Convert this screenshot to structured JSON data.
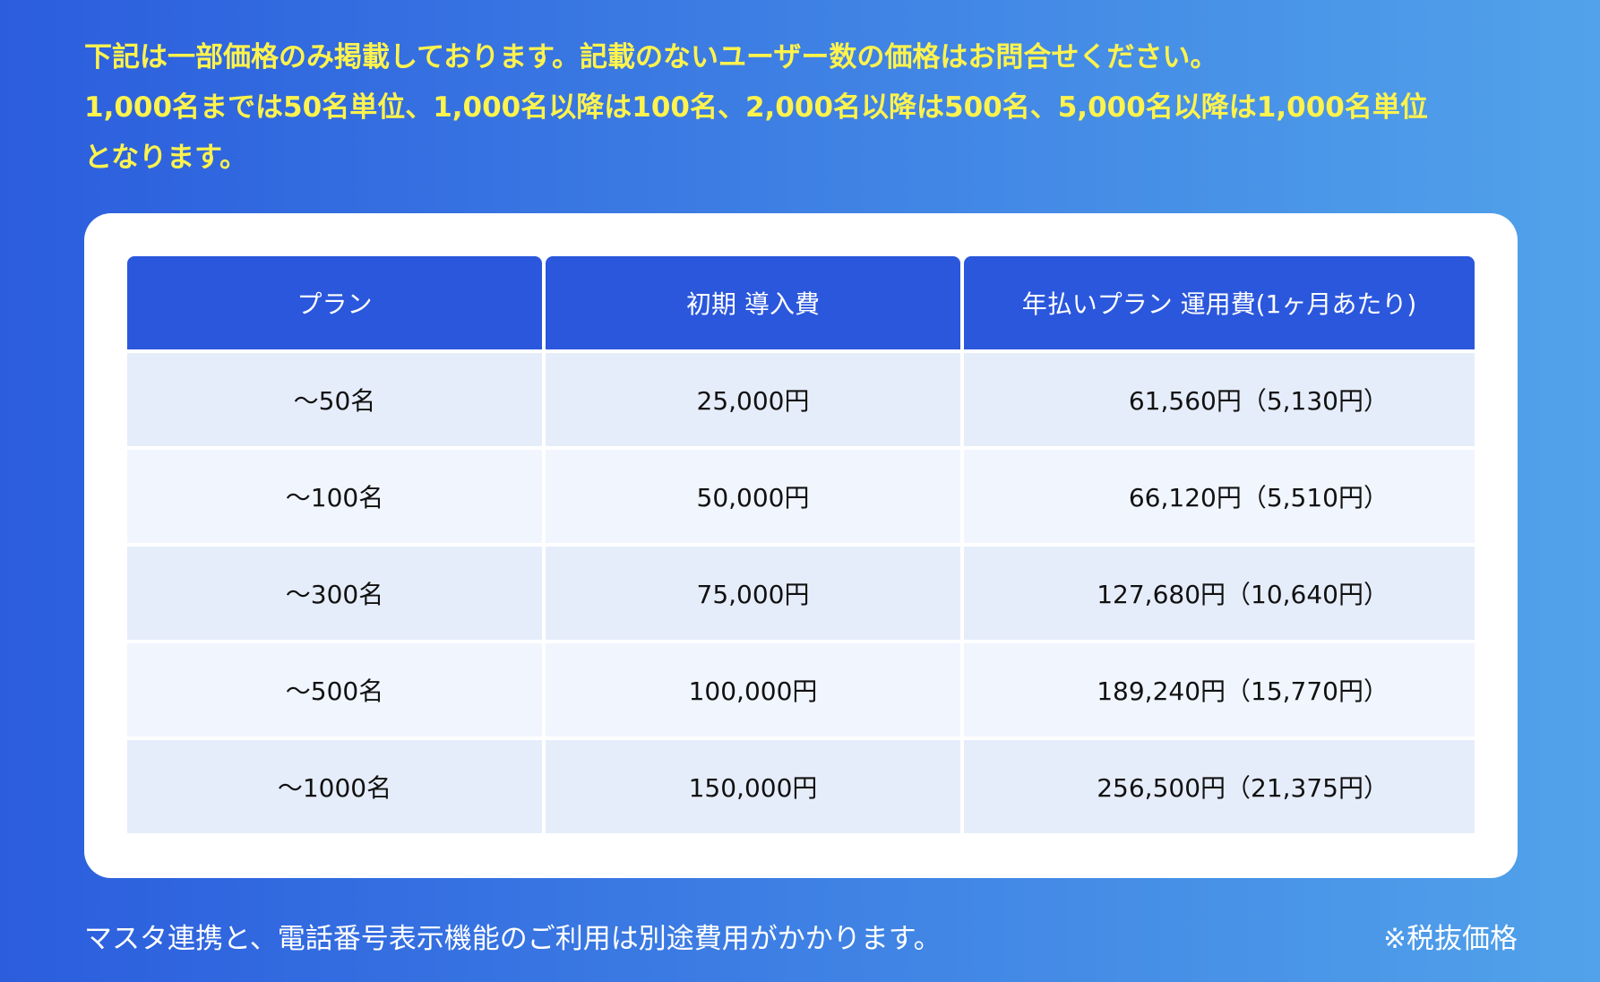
{
  "notice": {
    "line1": "下記は一部価格のみ掲載しております。記載のないユーザー数の価格はお問合せください。",
    "line2": "1,000名までは50名単位、1,000名以降は100名、2,000名以降は500名、5,000名以降は1,000名単位",
    "line3": "となります。"
  },
  "table": {
    "headers": [
      "プラン",
      "初期 導入費",
      "年払いプラン 運用費(1ヶ月あたり)"
    ],
    "rows": [
      {
        "plan": "〜50名",
        "initial": "25,000円",
        "annual": "61,560円（5,130円）"
      },
      {
        "plan": "〜100名",
        "initial": "50,000円",
        "annual": "66,120円（5,510円）"
      },
      {
        "plan": "〜300名",
        "initial": "75,000円",
        "annual": "127,680円（10,640円）"
      },
      {
        "plan": "〜500名",
        "initial": "100,000円",
        "annual": "189,240円（15,770円）"
      },
      {
        "plan": "〜1000名",
        "initial": "150,000円",
        "annual": "256,500円（21,375円）"
      }
    ]
  },
  "footer": {
    "note": "マスタ連携と、電話番号表示機能のご利用は別途費用がかかります。",
    "tax": "※税抜価格"
  },
  "colors": {
    "notice_text": "#fff34d",
    "header_bg": "#2b57dd",
    "row_odd": "#e6edfa",
    "row_even": "#f1f5fe"
  }
}
